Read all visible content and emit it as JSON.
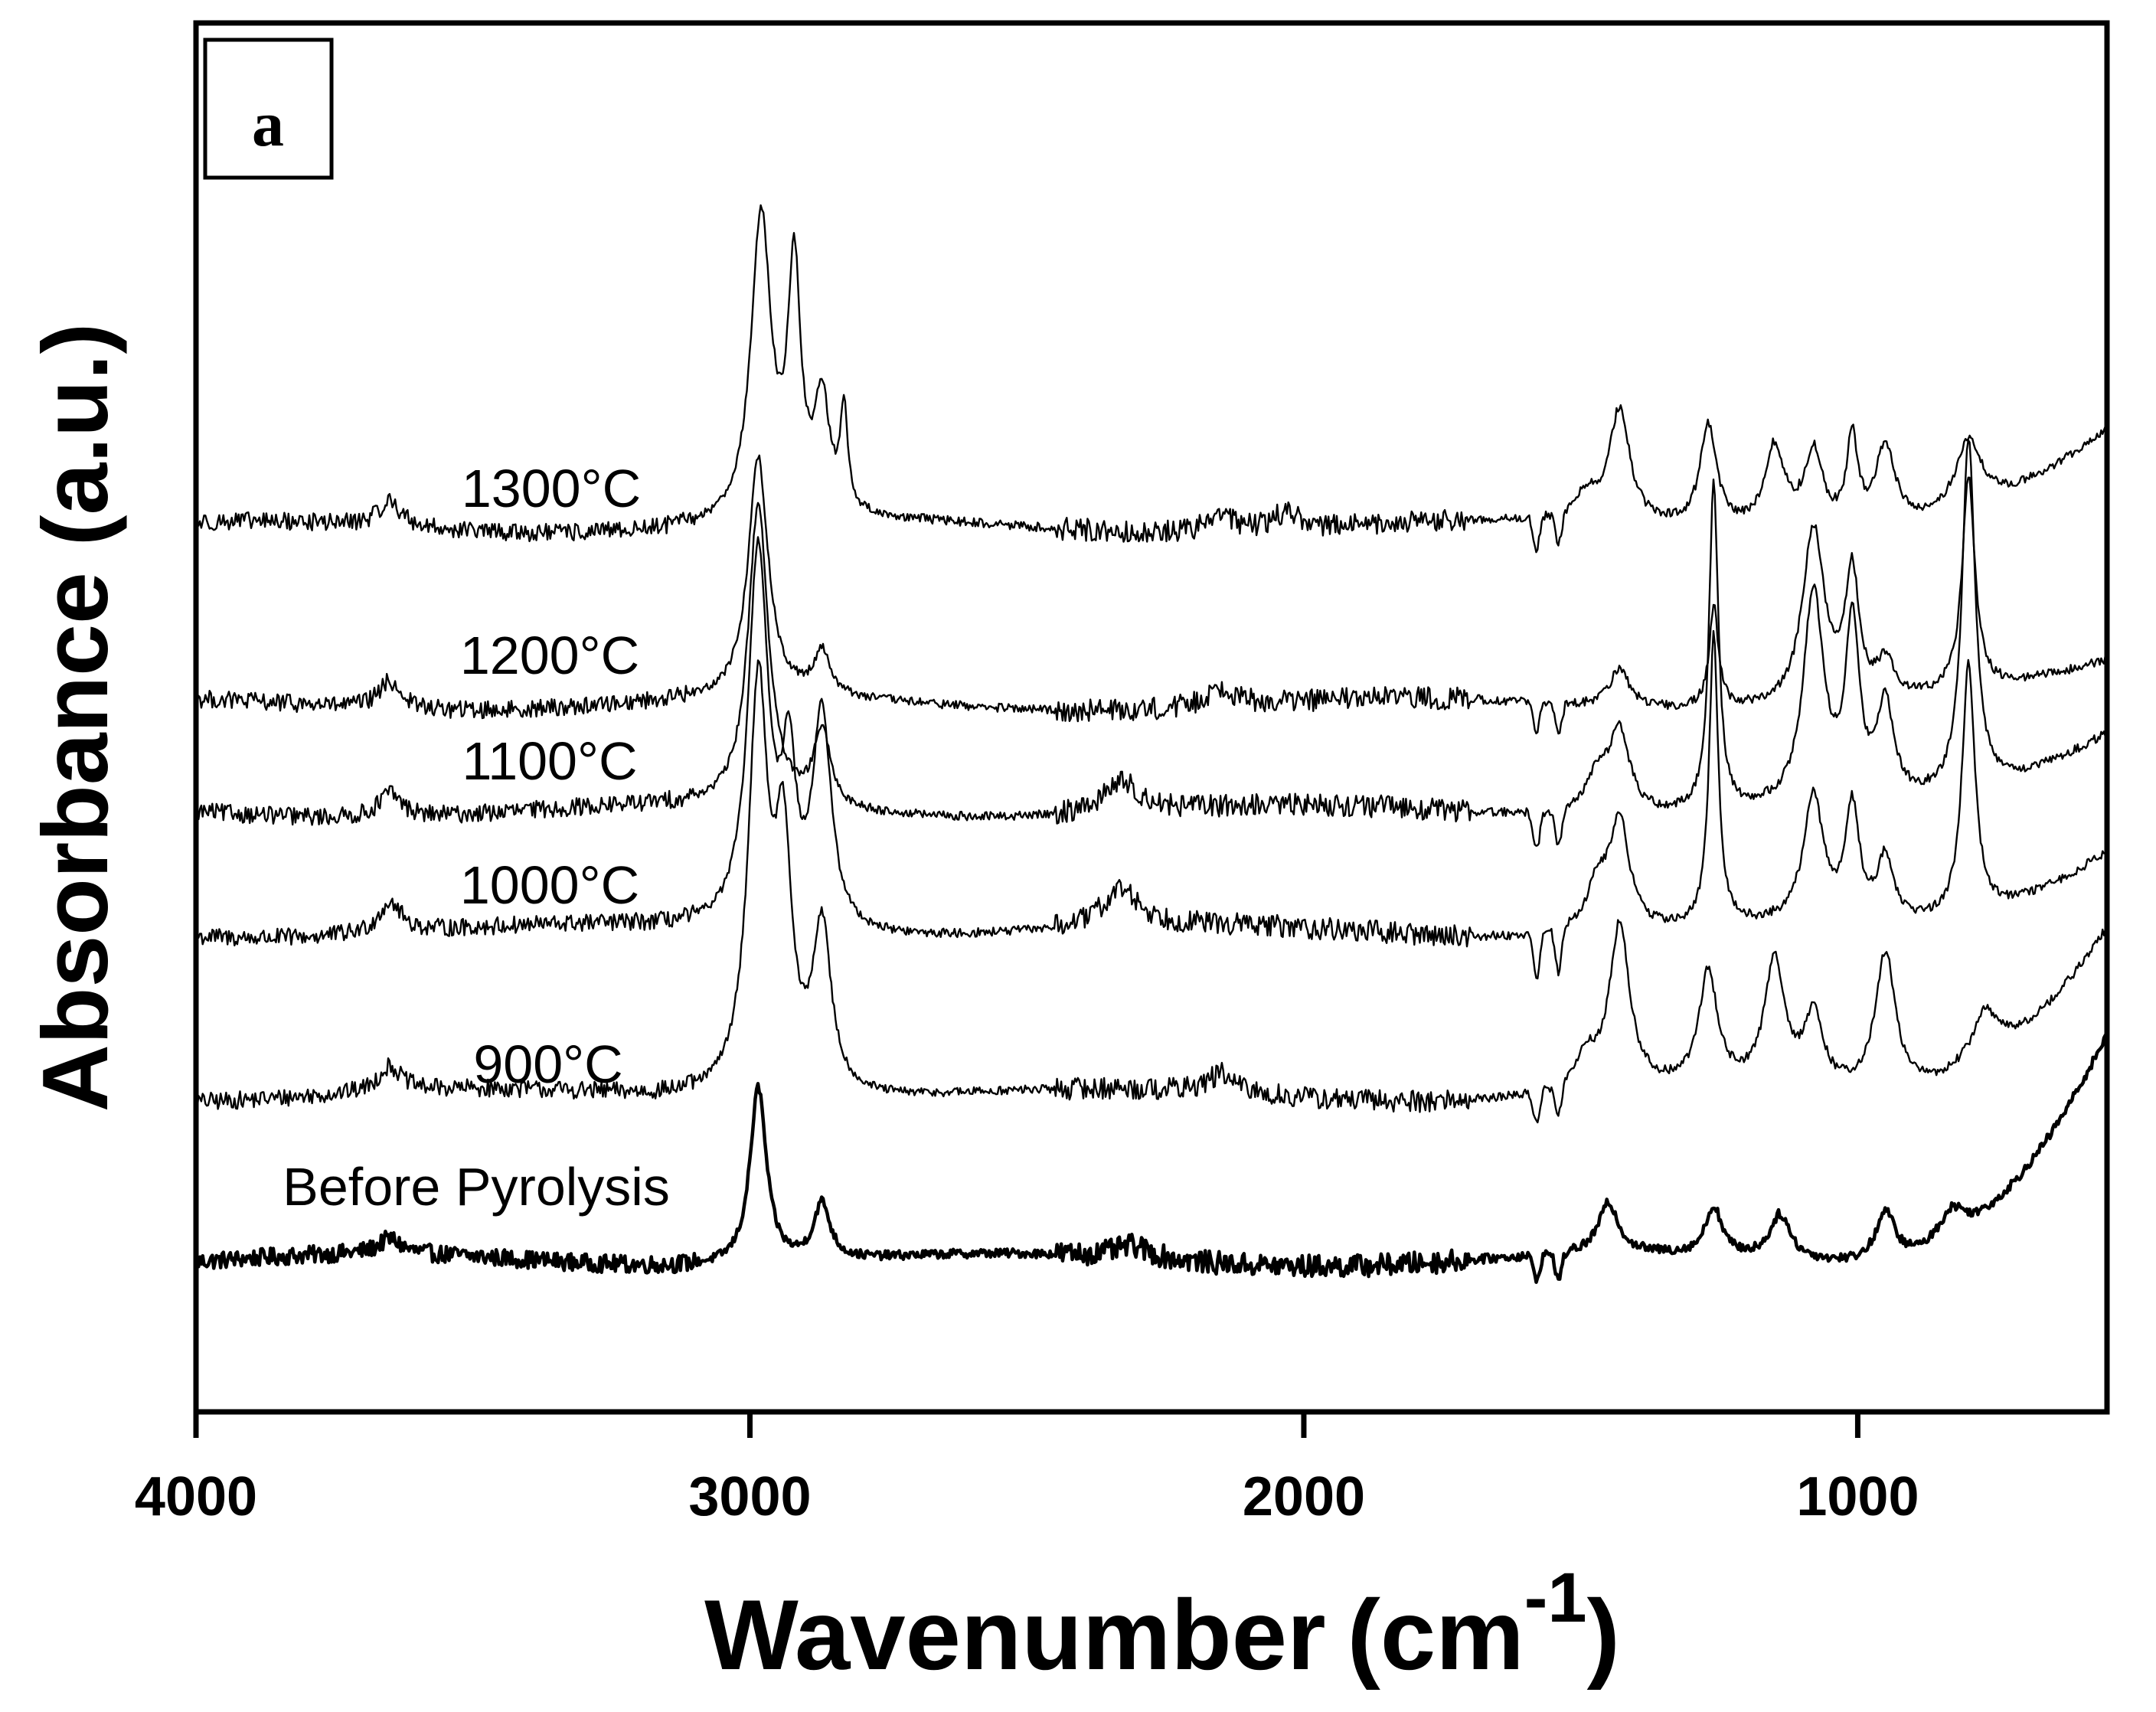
{
  "chart_data": {
    "type": "line",
    "panel_label": "a",
    "xlabel": "Wavenumber",
    "xlabel_unit": "(cm",
    "xlabel_unit_exp": "-1",
    "xlabel_unit_close": ")",
    "ylabel": "Absorbance (a.u.)",
    "xlim": [
      4000,
      550
    ],
    "x_reversed": true,
    "ylim": [
      0,
      11
    ],
    "x_ticks": [
      4000,
      3000,
      2000,
      1000
    ],
    "y_ticks_shown": false,
    "grid": false,
    "legend": "inline labels",
    "series": [
      {
        "name": "Before Pyrolysis",
        "offset": 1.2,
        "baseline_slope": 0.0,
        "stroke": "thick",
        "peaks": [
          {
            "x": 3650,
            "height": 0.12,
            "width": 25
          },
          {
            "x": 2985,
            "height": 1.4,
            "width": 18
          },
          {
            "x": 2870,
            "height": 0.45,
            "width": 18
          },
          {
            "x": 2310,
            "height": 0.1,
            "width": 40
          },
          {
            "x": 1450,
            "height": 0.4,
            "width": 22
          },
          {
            "x": 1260,
            "height": 0.38,
            "width": 18
          },
          {
            "x": 1140,
            "height": 0.35,
            "width": 22
          },
          {
            "x": 950,
            "height": 0.4,
            "width": 22
          },
          {
            "x": 830,
            "height": 0.25,
            "width": 30
          }
        ],
        "dips": [
          {
            "x": 1580,
            "depth": 0.2,
            "width": 8
          },
          {
            "x": 1540,
            "depth": 0.22,
            "width": 8
          }
        ],
        "tail_rise": 1.7
      },
      {
        "name": "900°C",
        "offset": 2.5,
        "stroke": "thin",
        "peaks": [
          {
            "x": 3650,
            "height": 0.2,
            "width": 25
          },
          {
            "x": 2985,
            "height": 3.2,
            "width": 22
          },
          {
            "x": 2940,
            "height": 1.8,
            "width": 18
          },
          {
            "x": 2870,
            "height": 1.3,
            "width": 20
          },
          {
            "x": 2150,
            "height": 0.15,
            "width": 30
          },
          {
            "x": 1490,
            "height": 0.25,
            "width": 25
          },
          {
            "x": 1430,
            "height": 1.3,
            "width": 22
          },
          {
            "x": 1270,
            "height": 0.9,
            "width": 20
          },
          {
            "x": 1150,
            "height": 1.0,
            "width": 22
          },
          {
            "x": 1080,
            "height": 0.55,
            "width": 20
          },
          {
            "x": 950,
            "height": 1.1,
            "width": 22
          },
          {
            "x": 770,
            "height": 0.4,
            "width": 30
          }
        ],
        "dips": [
          {
            "x": 1580,
            "depth": 0.25,
            "width": 8
          },
          {
            "x": 1540,
            "depth": 0.25,
            "width": 8
          }
        ],
        "tail_rise": 1.3
      },
      {
        "name": "1000°C",
        "offset": 3.8,
        "stroke": "thin",
        "peaks": [
          {
            "x": 3650,
            "height": 0.25,
            "width": 25
          },
          {
            "x": 2985,
            "height": 3.0,
            "width": 22
          },
          {
            "x": 2930,
            "height": 1.2,
            "width": 15
          },
          {
            "x": 2870,
            "height": 1.7,
            "width": 20
          },
          {
            "x": 2330,
            "height": 0.3,
            "width": 40
          },
          {
            "x": 1470,
            "height": 0.35,
            "width": 25
          },
          {
            "x": 1430,
            "height": 0.85,
            "width": 22
          },
          {
            "x": 1260,
            "height": 2.3,
            "width": 10
          },
          {
            "x": 1080,
            "height": 1.0,
            "width": 22
          },
          {
            "x": 1010,
            "height": 0.9,
            "width": 15
          },
          {
            "x": 950,
            "height": 0.5,
            "width": 18
          },
          {
            "x": 800,
            "height": 2.0,
            "width": 14
          }
        ],
        "dips": [
          {
            "x": 1580,
            "depth": 0.35,
            "width": 8
          },
          {
            "x": 1540,
            "depth": 0.35,
            "width": 8
          }
        ],
        "tail_rise": 0.65
      },
      {
        "name": "1100°C",
        "offset": 4.75,
        "stroke": "thin",
        "peaks": [
          {
            "x": 3650,
            "height": 0.2,
            "width": 25
          },
          {
            "x": 2985,
            "height": 2.4,
            "width": 22
          },
          {
            "x": 2870,
            "height": 0.6,
            "width": 18
          },
          {
            "x": 2330,
            "height": 0.25,
            "width": 40
          },
          {
            "x": 1470,
            "height": 0.3,
            "width": 25
          },
          {
            "x": 1430,
            "height": 0.65,
            "width": 22
          },
          {
            "x": 1260,
            "height": 2.6,
            "width": 10
          },
          {
            "x": 1080,
            "height": 1.7,
            "width": 22
          },
          {
            "x": 1010,
            "height": 1.4,
            "width": 15
          },
          {
            "x": 950,
            "height": 0.75,
            "width": 18
          },
          {
            "x": 800,
            "height": 2.8,
            "width": 14
          }
        ],
        "dips": [
          {
            "x": 1580,
            "depth": 0.3,
            "width": 8
          },
          {
            "x": 1540,
            "depth": 0.3,
            "width": 8
          }
        ],
        "tail_rise": 0.6
      },
      {
        "name": "1200°C",
        "offset": 5.6,
        "stroke": "thin",
        "peaks": [
          {
            "x": 3650,
            "height": 0.22,
            "width": 25
          },
          {
            "x": 2985,
            "height": 1.9,
            "width": 22
          },
          {
            "x": 2870,
            "height": 0.35,
            "width": 18
          },
          {
            "x": 2150,
            "height": 0.15,
            "width": 30
          },
          {
            "x": 1430,
            "height": 0.3,
            "width": 22
          },
          {
            "x": 1260,
            "height": 0.8,
            "width": 10
          },
          {
            "x": 1080,
            "height": 1.4,
            "width": 24
          },
          {
            "x": 1010,
            "height": 1.0,
            "width": 15
          },
          {
            "x": 950,
            "height": 0.3,
            "width": 18
          },
          {
            "x": 800,
            "height": 1.7,
            "width": 14
          }
        ],
        "dips": [
          {
            "x": 1580,
            "depth": 0.25,
            "width": 8
          },
          {
            "x": 1540,
            "depth": 0.25,
            "width": 8
          }
        ],
        "tail_rise": 0.3
      },
      {
        "name": "1300°C",
        "offset": 7.0,
        "stroke": "thin",
        "peaks": [
          {
            "x": 3650,
            "height": 0.2,
            "width": 25
          },
          {
            "x": 2980,
            "height": 2.4,
            "width": 22
          },
          {
            "x": 2920,
            "height": 1.9,
            "width": 14
          },
          {
            "x": 2870,
            "height": 0.9,
            "width": 16
          },
          {
            "x": 2830,
            "height": 0.8,
            "width": 8
          },
          {
            "x": 2150,
            "height": 0.15,
            "width": 30
          },
          {
            "x": 2030,
            "height": 0.15,
            "width": 30
          },
          {
            "x": 1490,
            "height": 0.2,
            "width": 25
          },
          {
            "x": 1430,
            "height": 0.9,
            "width": 22
          },
          {
            "x": 1270,
            "height": 0.8,
            "width": 18
          },
          {
            "x": 1150,
            "height": 0.65,
            "width": 22
          },
          {
            "x": 1080,
            "height": 0.6,
            "width": 20
          },
          {
            "x": 1010,
            "height": 0.7,
            "width": 12
          },
          {
            "x": 950,
            "height": 0.65,
            "width": 22
          },
          {
            "x": 800,
            "height": 0.55,
            "width": 30
          }
        ],
        "dips": [
          {
            "x": 1580,
            "depth": 0.25,
            "width": 8
          },
          {
            "x": 1540,
            "depth": 0.25,
            "width": 8
          }
        ],
        "tail_rise": 0.7
      }
    ]
  }
}
